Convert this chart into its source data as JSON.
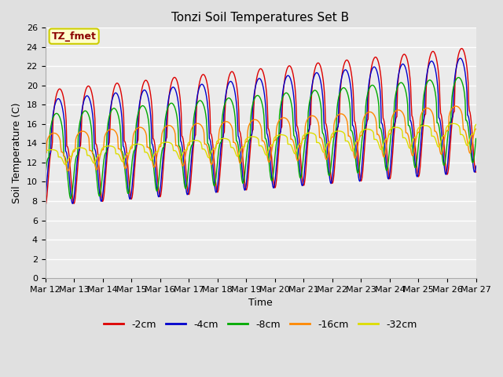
{
  "title": "Tonzi Soil Temperatures Set B",
  "xlabel": "Time",
  "ylabel": "Soil Temperature (C)",
  "ylim": [
    0,
    26
  ],
  "xlim": [
    0,
    15
  ],
  "annotation": "TZ_fmet",
  "annotation_fgcolor": "#8B0000",
  "annotation_bgcolor": "#ffffcc",
  "annotation_edgecolor": "#cccc00",
  "legend_labels": [
    "-2cm",
    "-4cm",
    "-8cm",
    "-16cm",
    "-32cm"
  ],
  "legend_colors": [
    "#dd0000",
    "#0000cc",
    "#00aa00",
    "#ff8800",
    "#dddd00"
  ],
  "x_tick_labels": [
    "Mar 12",
    "Mar 13",
    "Mar 14",
    "Mar 15",
    "Mar 16",
    "Mar 17",
    "Mar 18",
    "Mar 19",
    "Mar 20",
    "Mar 21",
    "Mar 22",
    "Mar 23",
    "Mar 24",
    "Mar 25",
    "Mar 26",
    "Mar 27"
  ],
  "bg_color": "#e0e0e0",
  "plot_bg_color": "#ebebeb",
  "grid_color": "#ffffff",
  "title_fontsize": 11,
  "label_fontsize": 9,
  "tick_fontsize": 8
}
